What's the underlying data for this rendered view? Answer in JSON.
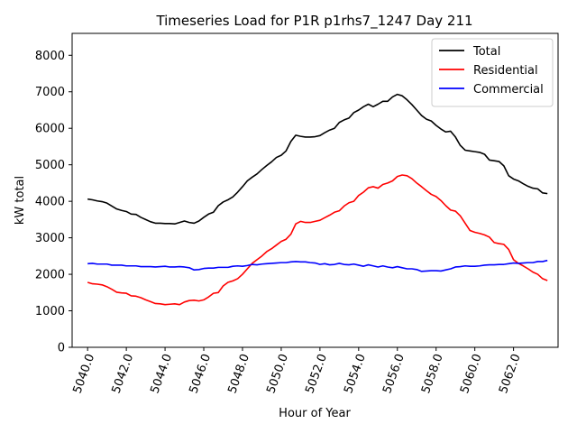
{
  "chart_data": {
    "type": "line",
    "title": "Timeseries Load for P1R p1rhs7_1247  Day 211",
    "xlabel": "Hour of Year",
    "ylabel": "kW total",
    "xlim": [
      5039.2,
      5064.3
    ],
    "ylim": [
      0,
      8600
    ],
    "xticks": [
      5040,
      5042,
      5044,
      5046,
      5048,
      5050,
      5052,
      5054,
      5056,
      5058,
      5060,
      5062
    ],
    "xtick_labels": [
      "5040.0",
      "5042.0",
      "5044.0",
      "5046.0",
      "5048.0",
      "5050.0",
      "5052.0",
      "5054.0",
      "5056.0",
      "5058.0",
      "5060.0",
      "5062.0"
    ],
    "yticks": [
      0,
      1000,
      2000,
      3000,
      4000,
      5000,
      6000,
      7000,
      8000
    ],
    "ytick_labels": [
      "0",
      "1000",
      "2000",
      "3000",
      "4000",
      "5000",
      "6000",
      "7000",
      "8000"
    ],
    "legend_position": "top-right",
    "series": [
      {
        "name": "Total",
        "color": "#000000",
        "x": [
          5040.0,
          5040.25,
          5040.5,
          5040.75,
          5041.0,
          5041.25,
          5041.5,
          5041.75,
          5042.0,
          5042.25,
          5042.5,
          5042.75,
          5043.0,
          5043.25,
          5043.5,
          5043.75,
          5044.0,
          5044.25,
          5044.5,
          5044.75,
          5045.0,
          5045.25,
          5045.5,
          5045.75,
          5046.0,
          5046.25,
          5046.5,
          5046.75,
          5047.0,
          5047.25,
          5047.5,
          5047.75,
          5048.0,
          5048.25,
          5048.5,
          5048.75,
          5049.0,
          5049.25,
          5049.5,
          5049.75,
          5050.0,
          5050.25,
          5050.5,
          5050.75,
          5051.0,
          5051.25,
          5051.5,
          5051.75,
          5052.0,
          5052.25,
          5052.5,
          5052.75,
          5053.0,
          5053.25,
          5053.5,
          5053.75,
          5054.0,
          5054.25,
          5054.5,
          5054.75,
          5055.0,
          5055.25,
          5055.5,
          5055.75,
          5056.0,
          5056.25,
          5056.5,
          5056.75,
          5057.0,
          5057.25,
          5057.5,
          5057.75,
          5058.0,
          5058.25,
          5058.5,
          5058.75,
          5059.0,
          5059.25,
          5059.5,
          5059.75,
          5060.0,
          5060.25,
          5060.5,
          5060.75,
          5061.0,
          5061.25,
          5061.5,
          5061.75,
          5062.0,
          5062.25,
          5062.5,
          5062.75,
          5063.0,
          5063.25,
          5063.5,
          5063.75
        ],
        "y": [
          4060,
          4040,
          4010,
          3990,
          3950,
          3870,
          3790,
          3750,
          3720,
          3650,
          3640,
          3560,
          3500,
          3440,
          3400,
          3400,
          3390,
          3390,
          3380,
          3420,
          3460,
          3420,
          3400,
          3460,
          3560,
          3650,
          3700,
          3880,
          3980,
          4040,
          4120,
          4250,
          4400,
          4560,
          4660,
          4750,
          4870,
          4980,
          5080,
          5200,
          5260,
          5380,
          5640,
          5810,
          5780,
          5760,
          5760,
          5770,
          5800,
          5880,
          5950,
          6000,
          6160,
          6230,
          6280,
          6430,
          6500,
          6590,
          6660,
          6590,
          6660,
          6740,
          6740,
          6860,
          6930,
          6890,
          6780,
          6650,
          6500,
          6350,
          6250,
          6200,
          6080,
          5980,
          5900,
          5920,
          5760,
          5530,
          5400,
          5380,
          5360,
          5340,
          5290,
          5130,
          5110,
          5090,
          4970,
          4700,
          4610,
          4560,
          4480,
          4410,
          4360,
          4340,
          4230,
          4210
        ]
      },
      {
        "name": "Residential",
        "color": "#ff0000",
        "x": [
          5040.0,
          5040.25,
          5040.5,
          5040.75,
          5041.0,
          5041.25,
          5041.5,
          5041.75,
          5042.0,
          5042.25,
          5042.5,
          5042.75,
          5043.0,
          5043.25,
          5043.5,
          5043.75,
          5044.0,
          5044.25,
          5044.5,
          5044.75,
          5045.0,
          5045.25,
          5045.5,
          5045.75,
          5046.0,
          5046.25,
          5046.5,
          5046.75,
          5047.0,
          5047.25,
          5047.5,
          5047.75,
          5048.0,
          5048.25,
          5048.5,
          5048.75,
          5049.0,
          5049.25,
          5049.5,
          5049.75,
          5050.0,
          5050.25,
          5050.5,
          5050.75,
          5051.0,
          5051.25,
          5051.5,
          5051.75,
          5052.0,
          5052.25,
          5052.5,
          5052.75,
          5053.0,
          5053.25,
          5053.5,
          5053.75,
          5054.0,
          5054.25,
          5054.5,
          5054.75,
          5055.0,
          5055.25,
          5055.5,
          5055.75,
          5056.0,
          5056.25,
          5056.5,
          5056.75,
          5057.0,
          5057.25,
          5057.5,
          5057.75,
          5058.0,
          5058.25,
          5058.5,
          5058.75,
          5059.0,
          5059.25,
          5059.5,
          5059.75,
          5060.0,
          5060.25,
          5060.5,
          5060.75,
          5061.0,
          5061.25,
          5061.5,
          5061.75,
          5062.0,
          5062.25,
          5062.5,
          5062.75,
          5063.0,
          5063.25,
          5063.5,
          5063.75
        ],
        "y": [
          1780,
          1740,
          1730,
          1710,
          1660,
          1590,
          1510,
          1490,
          1480,
          1410,
          1400,
          1360,
          1300,
          1250,
          1200,
          1190,
          1170,
          1180,
          1190,
          1170,
          1240,
          1280,
          1290,
          1270,
          1300,
          1380,
          1480,
          1500,
          1680,
          1780,
          1820,
          1880,
          2000,
          2150,
          2300,
          2400,
          2500,
          2620,
          2700,
          2800,
          2900,
          2960,
          3100,
          3380,
          3450,
          3420,
          3420,
          3450,
          3480,
          3550,
          3620,
          3700,
          3740,
          3870,
          3960,
          4000,
          4160,
          4250,
          4370,
          4400,
          4360,
          4460,
          4500,
          4560,
          4680,
          4720,
          4700,
          4620,
          4500,
          4400,
          4290,
          4190,
          4130,
          4020,
          3880,
          3760,
          3730,
          3600,
          3400,
          3200,
          3150,
          3120,
          3080,
          3020,
          2870,
          2840,
          2820,
          2680,
          2400,
          2300,
          2230,
          2150,
          2060,
          2000,
          1880,
          1830
        ]
      },
      {
        "name": "Commercial",
        "color": "#0000ff",
        "x": [
          5040.0,
          5040.25,
          5040.5,
          5040.75,
          5041.0,
          5041.25,
          5041.5,
          5041.75,
          5042.0,
          5042.25,
          5042.5,
          5042.75,
          5043.0,
          5043.25,
          5043.5,
          5043.75,
          5044.0,
          5044.25,
          5044.5,
          5044.75,
          5045.0,
          5045.25,
          5045.5,
          5045.75,
          5046.0,
          5046.25,
          5046.5,
          5046.75,
          5047.0,
          5047.25,
          5047.5,
          5047.75,
          5048.0,
          5048.25,
          5048.5,
          5048.75,
          5049.0,
          5049.25,
          5049.5,
          5049.75,
          5050.0,
          5050.25,
          5050.5,
          5050.75,
          5051.0,
          5051.25,
          5051.5,
          5051.75,
          5052.0,
          5052.25,
          5052.5,
          5052.75,
          5053.0,
          5053.25,
          5053.5,
          5053.75,
          5054.0,
          5054.25,
          5054.5,
          5054.75,
          5055.0,
          5055.25,
          5055.5,
          5055.75,
          5056.0,
          5056.25,
          5056.5,
          5056.75,
          5057.0,
          5057.25,
          5057.5,
          5057.75,
          5058.0,
          5058.25,
          5058.5,
          5058.75,
          5059.0,
          5059.25,
          5059.5,
          5059.75,
          5060.0,
          5060.25,
          5060.5,
          5060.75,
          5061.0,
          5061.25,
          5061.5,
          5061.75,
          5062.0,
          5062.25,
          5062.5,
          5062.75,
          5063.0,
          5063.25,
          5063.5,
          5063.75
        ],
        "y": [
          2290,
          2300,
          2280,
          2280,
          2280,
          2250,
          2250,
          2250,
          2230,
          2230,
          2230,
          2210,
          2210,
          2210,
          2200,
          2210,
          2220,
          2200,
          2200,
          2210,
          2200,
          2180,
          2120,
          2130,
          2160,
          2170,
          2170,
          2190,
          2190,
          2190,
          2220,
          2230,
          2220,
          2240,
          2270,
          2260,
          2280,
          2290,
          2300,
          2310,
          2320,
          2320,
          2340,
          2350,
          2340,
          2340,
          2320,
          2310,
          2270,
          2290,
          2260,
          2270,
          2300,
          2270,
          2260,
          2280,
          2250,
          2220,
          2260,
          2230,
          2200,
          2230,
          2200,
          2180,
          2210,
          2180,
          2150,
          2150,
          2130,
          2080,
          2090,
          2100,
          2100,
          2090,
          2120,
          2150,
          2200,
          2210,
          2230,
          2220,
          2220,
          2230,
          2250,
          2260,
          2260,
          2270,
          2270,
          2290,
          2310,
          2300,
          2310,
          2320,
          2320,
          2350,
          2350,
          2380
        ]
      }
    ]
  }
}
